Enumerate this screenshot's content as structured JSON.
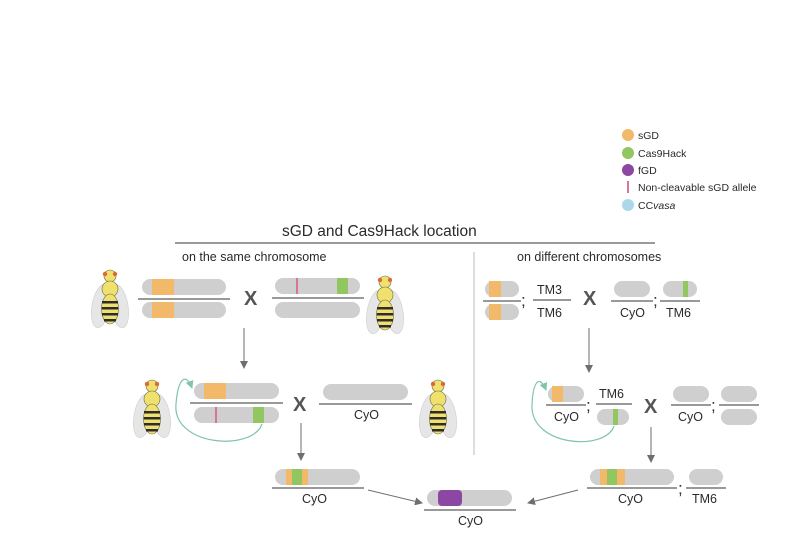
{
  "legend": {
    "items": [
      {
        "label": "sGD",
        "color": "#f2b96a"
      },
      {
        "label": "Cas9Hack",
        "color": "#92c660"
      },
      {
        "label": "fGD",
        "color": "#8c47a3"
      },
      {
        "label": "Non-cleavable sGD allele",
        "color": "#d9486d"
      },
      {
        "label_plain": "CC",
        "label_italic": "vasa",
        "color": "#abd9ea"
      }
    ]
  },
  "header": {
    "title": "sGD and Cas9Hack location",
    "left_heading": "on the same chromosome",
    "right_heading": "on different chromosomes"
  },
  "labels": {
    "tm3": "TM3",
    "tm6": "TM6",
    "cyo": "CyO",
    "cross": "X",
    "semicolon": ";"
  },
  "colors": {
    "chromosome": "#cfcfcf",
    "arrow": "#6e6e6e",
    "curve": "#7fc4ad",
    "fly_body": "#f0e06e",
    "fly_wing": "#e2e2e2"
  }
}
